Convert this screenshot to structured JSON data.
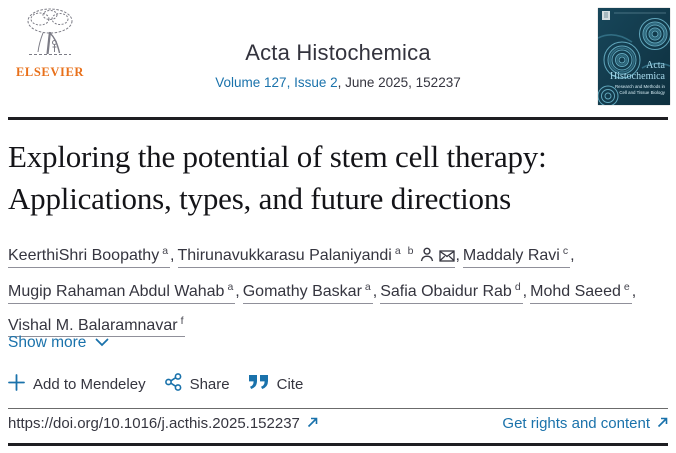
{
  "header": {
    "publisher_wordmark": "ELSEVIER",
    "journal_title": "Acta Histochemica",
    "volume_issue_link": "Volume 127, Issue 2",
    "issue_suffix": ", June 2025, 152237",
    "cover": {
      "title_line1": "Acta",
      "title_line2": "Histochemica",
      "subtitle_line1": "Research and Methods in",
      "subtitle_line2": "Cell and Tissue Biology"
    }
  },
  "article": {
    "title_line1": "Exploring the potential of stem cell therapy:",
    "title_line2": "Applications, types, and future directions",
    "authors": [
      {
        "name": "KeerthiShri Boopathy",
        "sup": "a"
      },
      {
        "name": "Thirunavukkarasu Palaniyandi",
        "sup": "a b",
        "icons": [
          "person",
          "envelope"
        ]
      },
      {
        "name": "Maddaly Ravi",
        "sup": "c",
        "break": true
      },
      {
        "name": "Mugip Rahaman Abdul Wahab",
        "sup": "a"
      },
      {
        "name": "Gomathy Baskar",
        "sup": "a"
      },
      {
        "name": "Safia Obaidur Rab",
        "sup": "d"
      },
      {
        "name": "Mohd Saeed",
        "sup": "e",
        "break": true
      },
      {
        "name": "Vishal M. Balaramnavar",
        "sup": "f"
      }
    ],
    "show_more_label": "Show more"
  },
  "toolbar": {
    "add_to_mendeley_label": "Add to Mendeley",
    "share_label": "Share",
    "cite_label": "Cite"
  },
  "footer": {
    "doi": "https://doi.org/10.1016/j.acthis.2025.152237",
    "rights_label": "Get rights and content"
  },
  "colors": {
    "link_blue": "#1a72ab",
    "elsevier_orange": "#e8701a",
    "divider_dark": "#1e1e22",
    "cover_teal": "#14404f"
  }
}
